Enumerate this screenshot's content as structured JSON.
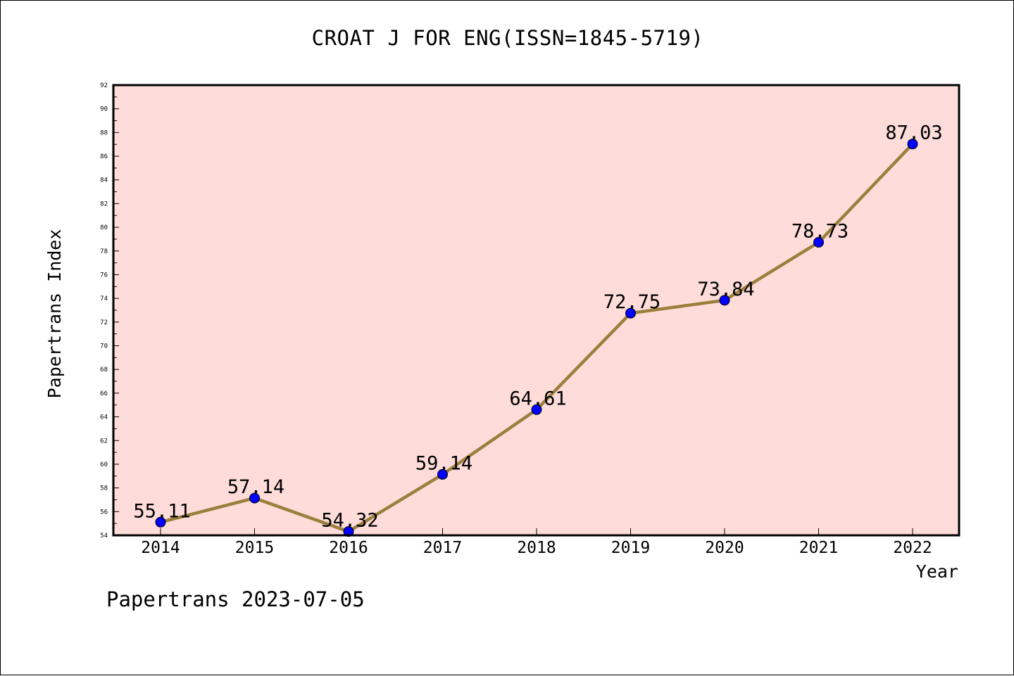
{
  "title": "CROAT J FOR ENG(ISSN=1845-5719)",
  "footer": "Papertrans 2023-07-05",
  "colors": {
    "plot_background": "#fddcda",
    "line": "#9b7f3c",
    "marker": "#0000ff",
    "axis": "#000000"
  },
  "chart_data": {
    "type": "line",
    "title": "CROAT J FOR ENG(ISSN=1845-5719)",
    "xlabel": "Year",
    "ylabel": "Papertrans Index",
    "categories": [
      "2014",
      "2015",
      "2016",
      "2017",
      "2018",
      "2019",
      "2020",
      "2021",
      "2022"
    ],
    "values": [
      55.11,
      57.14,
      54.32,
      59.14,
      64.61,
      72.75,
      73.84,
      78.73,
      87.03
    ],
    "data_labels": [
      "55.11",
      "57.14",
      "54.32",
      "59.14",
      "64.61",
      "72.75",
      "73.84",
      "78.73",
      "87.03"
    ],
    "ylim": [
      54,
      92
    ],
    "y_ticks": [
      54,
      56,
      58,
      60,
      62,
      64,
      66,
      68,
      70,
      72,
      74,
      76,
      78,
      80,
      82,
      84,
      86,
      88,
      90,
      92
    ],
    "grid": false,
    "legend": "none",
    "marker": "circle"
  }
}
